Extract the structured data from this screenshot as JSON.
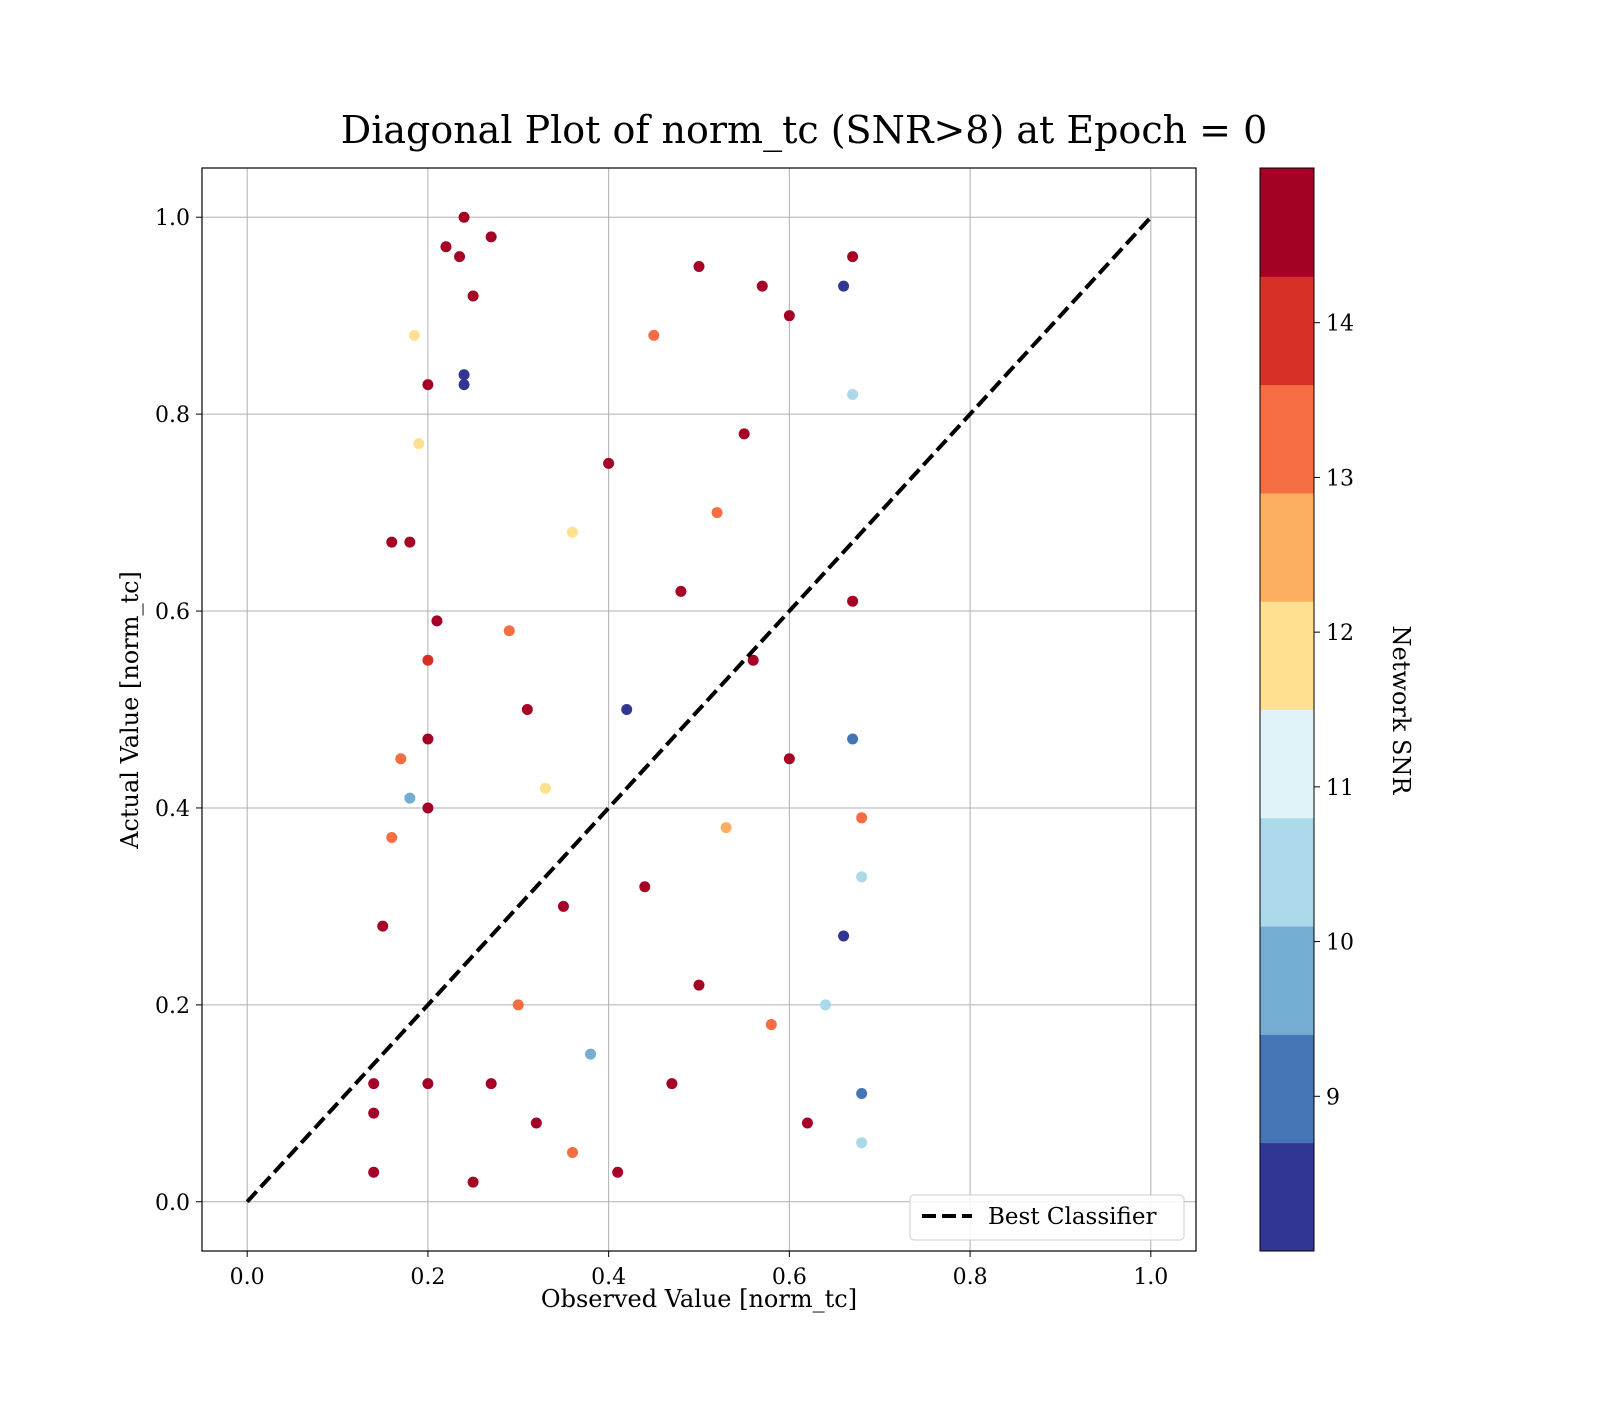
{
  "chart_data": {
    "type": "scatter",
    "title": "Diagonal Plot of norm_tc (SNR>8) at Epoch = 0",
    "xlabel": "Observed Value [norm_tc]",
    "ylabel": "Actual Value [norm_tc]",
    "xlim": [
      -0.05,
      1.05
    ],
    "ylim": [
      -0.05,
      1.05
    ],
    "x_ticks": [
      "0.0",
      "0.2",
      "0.4",
      "0.6",
      "0.8",
      "1.0"
    ],
    "y_ticks": [
      "0.0",
      "0.2",
      "0.4",
      "0.6",
      "0.8",
      "1.0"
    ],
    "grid": true,
    "legend": {
      "placement": "lower right",
      "entries": [
        "Best Classifier"
      ]
    },
    "reference_line": {
      "name": "Best Classifier",
      "style": "dashed",
      "color": "#000000",
      "x": [
        0.0,
        1.0
      ],
      "y": [
        0.0,
        1.0
      ]
    },
    "colorbar": {
      "label": "Network SNR",
      "range": [
        8,
        15
      ],
      "ticks": [
        "9",
        "10",
        "11",
        "12",
        "13",
        "14"
      ],
      "colors": [
        "#313695",
        "#4575b4",
        "#74add1",
        "#abd9e9",
        "#e0f3f8",
        "#ffffbf",
        "#fee090",
        "#fdae61",
        "#f46d43",
        "#d73027",
        "#a50026"
      ]
    },
    "points": [
      [
        0.16,
        0.67,
        14.8
      ],
      [
        0.18,
        0.67,
        14.8
      ],
      [
        0.185,
        0.88,
        12.0
      ],
      [
        0.2,
        0.83,
        14.8
      ],
      [
        0.19,
        0.77,
        11.9
      ],
      [
        0.22,
        0.97,
        14.6
      ],
      [
        0.24,
        1.0,
        14.7
      ],
      [
        0.24,
        0.84,
        8.2
      ],
      [
        0.24,
        0.83,
        8.3
      ],
      [
        0.25,
        0.92,
        14.3
      ],
      [
        0.235,
        0.96,
        14.8
      ],
      [
        0.27,
        0.98,
        14.8
      ],
      [
        0.2,
        0.55,
        14.1
      ],
      [
        0.21,
        0.59,
        14.7
      ],
      [
        0.17,
        0.45,
        13.2
      ],
      [
        0.2,
        0.47,
        14.8
      ],
      [
        0.18,
        0.41,
        9.9
      ],
      [
        0.2,
        0.4,
        14.6
      ],
      [
        0.15,
        0.28,
        14.8
      ],
      [
        0.16,
        0.37,
        13.0
      ],
      [
        0.14,
        0.12,
        14.8
      ],
      [
        0.14,
        0.09,
        14.8
      ],
      [
        0.14,
        0.03,
        14.8
      ],
      [
        0.68,
        0.11,
        8.9
      ],
      [
        0.68,
        0.06,
        10.5
      ],
      [
        0.68,
        0.33,
        10.3
      ],
      [
        0.68,
        0.39,
        13.5
      ],
      [
        0.67,
        0.61,
        14.8
      ],
      [
        0.67,
        0.82,
        10.3
      ],
      [
        0.67,
        0.96,
        14.8
      ],
      [
        0.66,
        0.93,
        8.6
      ],
      [
        0.67,
        0.47,
        8.9
      ],
      [
        0.66,
        0.27,
        8.5
      ],
      [
        0.29,
        0.58,
        13.0
      ],
      [
        0.31,
        0.5,
        14.8
      ],
      [
        0.33,
        0.42,
        12.1
      ],
      [
        0.35,
        0.3,
        14.8
      ],
      [
        0.3,
        0.2,
        13.6
      ],
      [
        0.27,
        0.12,
        14.8
      ],
      [
        0.32,
        0.08,
        14.8
      ],
      [
        0.38,
        0.15,
        9.5
      ],
      [
        0.42,
        0.5,
        8.4
      ],
      [
        0.48,
        0.62,
        14.8
      ],
      [
        0.52,
        0.7,
        13.0
      ],
      [
        0.55,
        0.78,
        14.8
      ],
      [
        0.6,
        0.9,
        14.6
      ],
      [
        0.57,
        0.93,
        14.8
      ],
      [
        0.5,
        0.95,
        14.8
      ],
      [
        0.45,
        0.88,
        13.5
      ],
      [
        0.4,
        0.75,
        14.8
      ],
      [
        0.36,
        0.68,
        11.5
      ],
      [
        0.44,
        0.32,
        14.8
      ],
      [
        0.5,
        0.22,
        14.8
      ],
      [
        0.58,
        0.18,
        13.4
      ],
      [
        0.62,
        0.08,
        14.8
      ],
      [
        0.64,
        0.2,
        10.6
      ],
      [
        0.6,
        0.45,
        14.8
      ],
      [
        0.56,
        0.55,
        14.8
      ],
      [
        0.53,
        0.38,
        12.4
      ],
      [
        0.47,
        0.12,
        14.8
      ],
      [
        0.41,
        0.03,
        14.8
      ],
      [
        0.36,
        0.05,
        13.2
      ],
      [
        0.25,
        0.02,
        14.8
      ],
      [
        0.2,
        0.12,
        14.8
      ]
    ]
  }
}
